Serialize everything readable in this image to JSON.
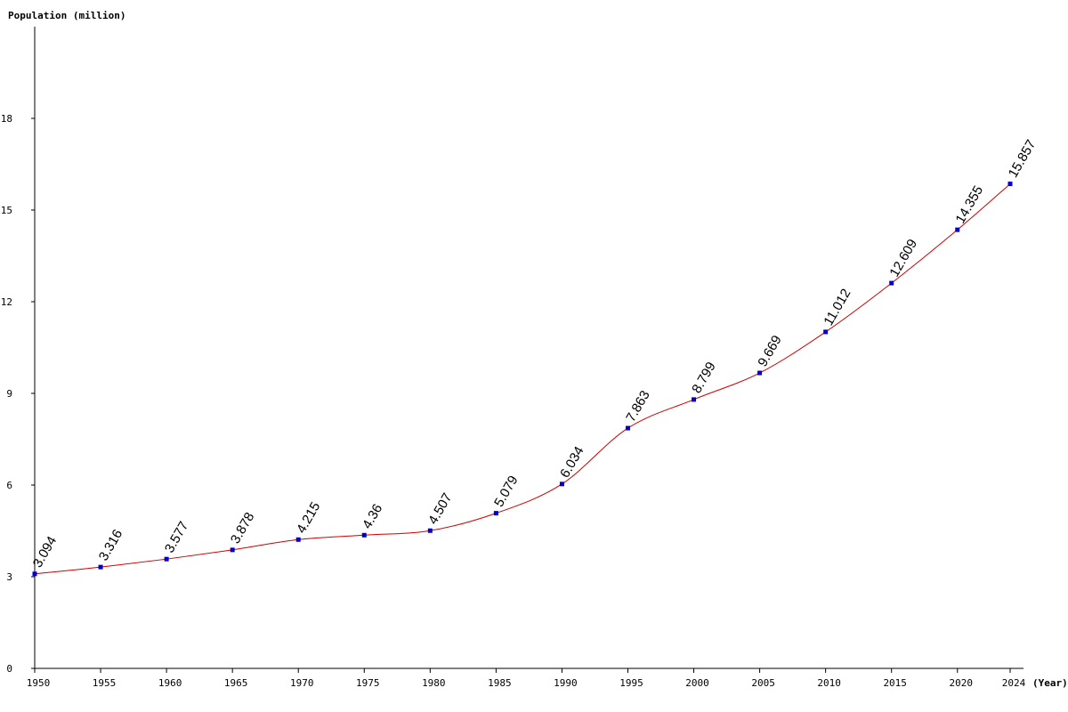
{
  "chart_data": {
    "type": "line",
    "ylabel": "Population (million)",
    "xlabel": "(Year)",
    "x": [
      1950,
      1955,
      1960,
      1965,
      1970,
      1975,
      1980,
      1985,
      1990,
      1995,
      2000,
      2005,
      2010,
      2015,
      2020,
      2024
    ],
    "series": [
      {
        "values": [
          3.094,
          3.316,
          3.577,
          3.878,
          4.215,
          4.36,
          4.507,
          5.079,
          6.034,
          7.863,
          8.799,
          9.669,
          11.012,
          12.609,
          14.355,
          15.857
        ],
        "labels": [
          "3.094",
          "3.316",
          "3.577",
          "3.878",
          "4.215",
          "4.36",
          "4.507",
          "5.079",
          "6.034",
          "7.863",
          "8.799",
          "9.669",
          "11.012",
          "12.609",
          "14.355",
          "15.857"
        ]
      }
    ],
    "x_ticks": [
      "1950",
      "1955",
      "1960",
      "1965",
      "1970",
      "1975",
      "1980",
      "1985",
      "1990",
      "1995",
      "2000",
      "2005",
      "2010",
      "2015",
      "2020",
      "2024"
    ],
    "y_ticks": [
      0,
      3,
      6,
      9,
      12,
      15,
      18
    ],
    "xlim": [
      1950,
      2024
    ],
    "ylim": [
      0,
      21
    ],
    "grid": false,
    "line_color": "#cc0000",
    "marker_color": "#0000cc"
  }
}
